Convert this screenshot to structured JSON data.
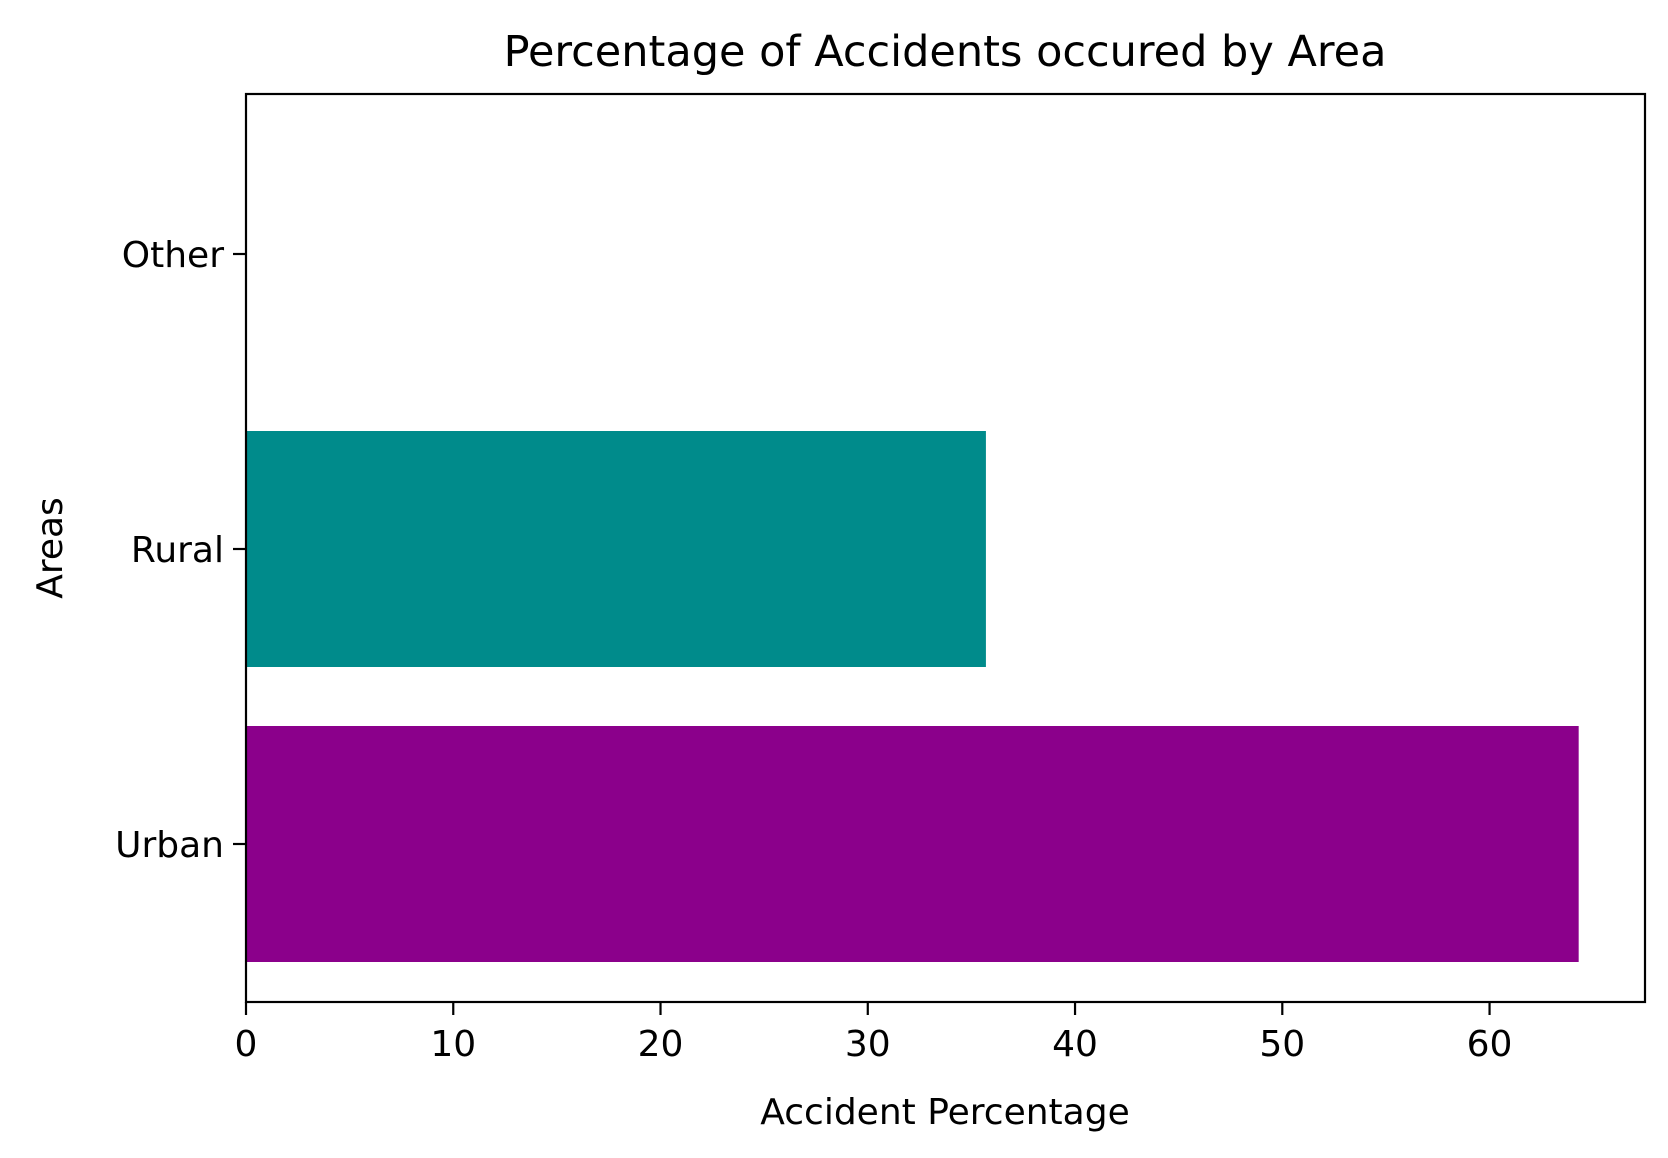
{
  "chart_data": {
    "type": "bar",
    "orientation": "horizontal",
    "title": "Percentage of Accidents occured by Area",
    "xlabel": "Accident Percentage",
    "ylabel": "Areas",
    "categories": [
      "Urban",
      "Rural",
      "Other"
    ],
    "values": [
      64.3,
      35.7,
      0.0
    ],
    "colors": [
      "#8B008B",
      "#008B8B",
      "#1f77b4"
    ],
    "xlim": [
      0,
      67.5
    ],
    "xticks": [
      0,
      10,
      20,
      30,
      40,
      50,
      60
    ],
    "grid": false,
    "legend": "none"
  }
}
